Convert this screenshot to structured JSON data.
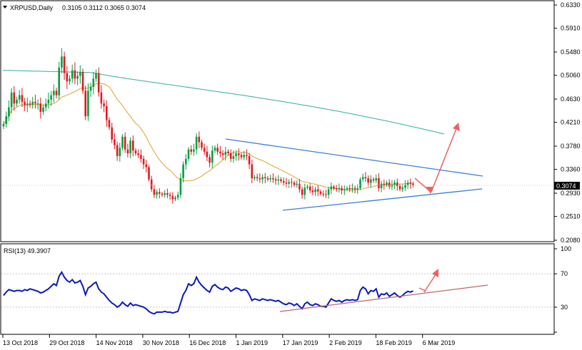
{
  "window": {
    "symbol_label": "XRPUSD,Daily",
    "ohlc_label": "0.3105 0.3112 0.3065 0.3074",
    "last_price_badge": "0.3074"
  },
  "colors": {
    "bull_candle": "#00a040",
    "bear_candle": "#e0191f",
    "ma_short": "#e0a030",
    "ma_long": "#30b0a0",
    "trendline": "#3a7fd6",
    "rsi_line": "#0a1ab8",
    "rsi_trend": "#b86a6a",
    "arrow": "#f06060",
    "axis": "#000000"
  },
  "chart_data": [
    {
      "type": "candlestick",
      "price_axis_ticks": [
        "0.6330",
        "0.5910",
        "0.5480",
        "0.5060",
        "0.4630",
        "0.4210",
        "0.3780",
        "0.3360",
        "0.2930",
        "0.2510",
        "0.2080"
      ],
      "ylim": [
        0.208,
        0.633
      ],
      "date_ticks": [
        "13 Oct 2018",
        "29 Oct 2018",
        "14 Nov 2018",
        "30 Nov 2018",
        "16 Dec 2018",
        "1 Jan 2019",
        "17 Jan 2019",
        "2 Feb 2019",
        "18 Feb 2019",
        "6 Mar 2019"
      ],
      "last_close": 0.3074,
      "closes": [
        0.418,
        0.432,
        0.448,
        0.475,
        0.455,
        0.462,
        0.47,
        0.458,
        0.452,
        0.455,
        0.453,
        0.458,
        0.455,
        0.455,
        0.44,
        0.448,
        0.455,
        0.462,
        0.47,
        0.478,
        0.47,
        0.52,
        0.54,
        0.51,
        0.495,
        0.5,
        0.515,
        0.5,
        0.505,
        0.512,
        0.478,
        0.432,
        0.478,
        0.485,
        0.5,
        0.51,
        0.475,
        0.455,
        0.45,
        0.425,
        0.412,
        0.39,
        0.38,
        0.36,
        0.375,
        0.395,
        0.372,
        0.365,
        0.388,
        0.37,
        0.365,
        0.362,
        0.355,
        0.345,
        0.34,
        0.318,
        0.3,
        0.29,
        0.295,
        0.292,
        0.29,
        0.293,
        0.29,
        0.288,
        0.282,
        0.285,
        0.29,
        0.32,
        0.345,
        0.355,
        0.372,
        0.368,
        0.372,
        0.395,
        0.385,
        0.375,
        0.368,
        0.358,
        0.348,
        0.37,
        0.375,
        0.368,
        0.365,
        0.362,
        0.368,
        0.365,
        0.355,
        0.36,
        0.365,
        0.362,
        0.358,
        0.362,
        0.36,
        0.345,
        0.32,
        0.322,
        0.32,
        0.318,
        0.322,
        0.32,
        0.318,
        0.32,
        0.318,
        0.316,
        0.318,
        0.315,
        0.312,
        0.31,
        0.313,
        0.312,
        0.308,
        0.31,
        0.3,
        0.29,
        0.303,
        0.305,
        0.298,
        0.295,
        0.3,
        0.296,
        0.292,
        0.291,
        0.29,
        0.3,
        0.305,
        0.302,
        0.3,
        0.302,
        0.298,
        0.3,
        0.302,
        0.3,
        0.302,
        0.3,
        0.302,
        0.318,
        0.322,
        0.32,
        0.312,
        0.318,
        0.316,
        0.32,
        0.302,
        0.31,
        0.308,
        0.312,
        0.305,
        0.308,
        0.312,
        0.306,
        0.3,
        0.303,
        0.308,
        0.312,
        0.31,
        0.3074
      ]
    },
    {
      "type": "line",
      "title": "RSI(13) 49.3907",
      "ylim": [
        0,
        100
      ],
      "levels": [
        "100",
        "70",
        "30",
        "0"
      ],
      "values": [
        44,
        48,
        51,
        50,
        49,
        50,
        50,
        49,
        51,
        50,
        52,
        51,
        50,
        49,
        47,
        48,
        50,
        52,
        55,
        58,
        56,
        67,
        72,
        66,
        62,
        60,
        63,
        59,
        60,
        62,
        55,
        45,
        53,
        55,
        58,
        60,
        52,
        48,
        46,
        42,
        38,
        35,
        33,
        30,
        32,
        36,
        33,
        31,
        35,
        32,
        33,
        32,
        31,
        30,
        28,
        25,
        23,
        22,
        24,
        24,
        24,
        25,
        24,
        24,
        23,
        24,
        25,
        35,
        45,
        50,
        58,
        56,
        58,
        66,
        60,
        56,
        53,
        50,
        48,
        55,
        57,
        54,
        52,
        51,
        54,
        53,
        49,
        51,
        53,
        52,
        50,
        51,
        50,
        45,
        38,
        40,
        39,
        38,
        40,
        39,
        38,
        39,
        38,
        37,
        38,
        36,
        34,
        33,
        35,
        34,
        32,
        34,
        31,
        28,
        34,
        36,
        33,
        32,
        34,
        33,
        31,
        31,
        30,
        35,
        40,
        38,
        37,
        38,
        36,
        38,
        39,
        38,
        39,
        38,
        39,
        50,
        54,
        52,
        46,
        50,
        49,
        52,
        42,
        46,
        45,
        47,
        43,
        45,
        47,
        44,
        42,
        44,
        47,
        49,
        48,
        49.39
      ]
    }
  ]
}
